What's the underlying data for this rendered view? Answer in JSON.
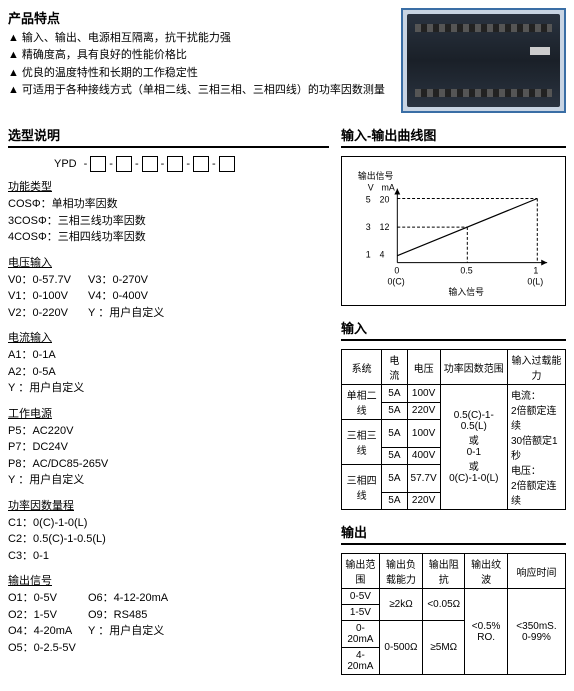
{
  "features": {
    "title": "产品特点",
    "items": [
      "输入、输出、电源相互隔离，抗干扰能力强",
      "精确度高，具有良好的性能价格比",
      "优良的温度特性和长期的工作稳定性",
      "可适用于各种接线方式（单相二线、三相三相、三相四线）的功率因数测量"
    ]
  },
  "model": {
    "title": "选型说明",
    "prefix": "YPD",
    "groups": [
      {
        "title": "功能类型",
        "lines": [
          [
            "COSΦ：单相功率因数"
          ],
          [
            "3COSΦ：三相三线功率因数"
          ],
          [
            "4COSΦ：三相四线功率因数"
          ]
        ]
      },
      {
        "title": "电压输入",
        "lines": [
          [
            "V0：0-57.7V",
            "V3：0-270V"
          ],
          [
            "V1：0-100V",
            "V4：0-400V"
          ],
          [
            "V2：0-220V",
            "Y ：用户自定义"
          ]
        ]
      },
      {
        "title": "电流输入",
        "lines": [
          [
            "A1：0-1A"
          ],
          [
            "A2：0-5A"
          ],
          [
            "Y ：用户自定义"
          ]
        ]
      },
      {
        "title": "工作电源",
        "lines": [
          [
            "P5：AC220V"
          ],
          [
            "P7：DC24V"
          ],
          [
            "P8：AC/DC85-265V"
          ],
          [
            "Y ：用户自定义"
          ]
        ]
      },
      {
        "title": "功率因数量程",
        "lines": [
          [
            "C1：0(C)-1-0(L)"
          ],
          [
            "C2：0.5(C)-1-0.5(L)"
          ],
          [
            "C3：0-1"
          ]
        ]
      },
      {
        "title": "输出信号",
        "lines": [
          [
            "O1：0-5V",
            "O6：4-12-20mA"
          ],
          [
            "O2：1-5V",
            "O9：RS485"
          ],
          [
            "O4：4-20mA",
            "Y ：用户自定义"
          ],
          [
            "O5：0-2.5-5V"
          ]
        ]
      }
    ]
  },
  "chart": {
    "title": "输入-输出曲线图",
    "y_label1": "输出信号",
    "y_unit_v": "V",
    "y_unit_ma": "mA",
    "y_ticks_v": [
      "5",
      "3",
      "1"
    ],
    "y_ticks_ma": [
      "20",
      "12",
      "4"
    ],
    "x_label": "输入信号",
    "x_ticks": [
      "0",
      "0.5",
      "1"
    ],
    "x_sub": [
      "0(C)",
      "",
      "0(L)"
    ]
  },
  "input": {
    "title": "输入",
    "headers": [
      "系统",
      "电流",
      "电压",
      "功率因数范围",
      "输入过载能力"
    ],
    "rows": [
      {
        "sys": "单相二线",
        "cur": [
          "5A",
          "5A"
        ],
        "volt": [
          "100V",
          "220V"
        ]
      },
      {
        "sys": "三相三线",
        "cur": [
          "5A",
          "5A"
        ],
        "volt": [
          "100V",
          "400V"
        ]
      },
      {
        "sys": "三相四线",
        "cur": [
          "5A",
          "5A"
        ],
        "volt": [
          "57.7V",
          "220V"
        ]
      }
    ],
    "pf_range": "0.5(C)-1-0.5(L)\n或\n0-1\n或\n0(C)-1-0(L)",
    "overload": "电流：\n  2倍额定连续\n  30倍额定1秒\n电压：\n  2倍额定连续"
  },
  "output": {
    "title": "输出",
    "headers": [
      "输出范围",
      "输出负载能力",
      "输出阻抗",
      "输出纹波",
      "响应时间"
    ],
    "ranges": [
      "0-5V",
      "1-5V",
      "0-20mA",
      "4-20mA"
    ],
    "load_v": "≥2kΩ",
    "imp_v": "<0.05Ω",
    "load_ma": "0-500Ω",
    "imp_ma": "≥5MΩ",
    "ripple": "<0.5% RO.",
    "response": "<350mS. 0-99%"
  }
}
